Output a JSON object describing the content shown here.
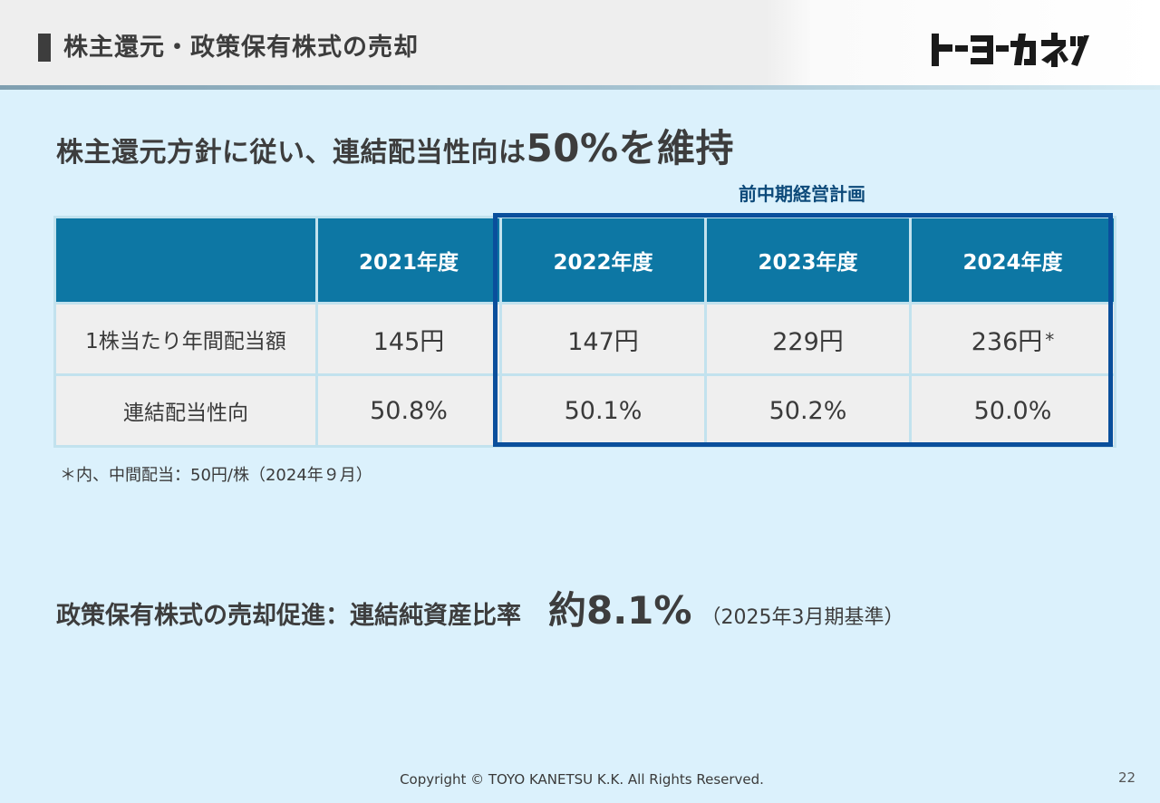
{
  "header": {
    "title": "株主還元・政策保有株式の売却",
    "logo_text": "トーヨーカネツ"
  },
  "headline": {
    "text_main": "株主還元方針に従い、連結配当性向は",
    "text_emph": "50%を維持"
  },
  "plan_label": "前中期経営計画",
  "table": {
    "columns": [
      "",
      "2021年度",
      "2022年度",
      "2023年度",
      "2024年度"
    ],
    "rows": [
      {
        "label": "1株当たり年間配当額",
        "values": [
          "145円",
          "147円",
          "229円",
          "236円"
        ],
        "last_mark": "*"
      },
      {
        "label": "連結配当性向",
        "values": [
          "50.8%",
          "50.1%",
          "50.2%",
          "50.0%"
        ]
      }
    ]
  },
  "note": "＊内、中間配当：50円/株（2024年９月）",
  "sell": {
    "lead": "政策保有株式の売却促進：連結純資産比率",
    "value": "約8.1%",
    "basis": "（2025年3月期基準）"
  },
  "footer": {
    "copyright": "Copyright © TOYO KANETSU K.K. All Rights Reserved.",
    "page": "22"
  },
  "colors": {
    "background": "#dbf1fc",
    "table_header": "#0d77a4",
    "plan_border": "#0a4f9c",
    "cell": "#efefef"
  }
}
